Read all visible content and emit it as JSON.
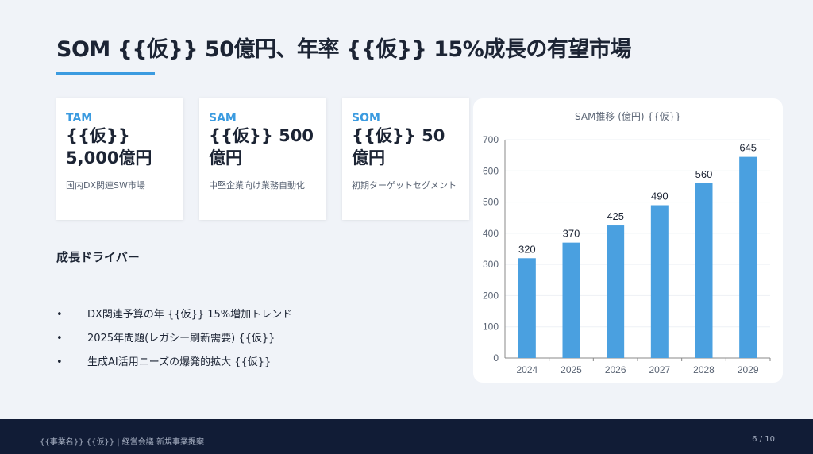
{
  "title": "SOM {{仮}} 50億円、年率 {{仮}} 15%成長の有望市場",
  "cards": [
    {
      "label": "TAM",
      "value": "{{仮}} 5,000億円",
      "desc": "国内DX関連SW市場"
    },
    {
      "label": "SAM",
      "value": "{{仮}} 500億円",
      "desc": "中堅企業向け業務自動化"
    },
    {
      "label": "SOM",
      "value": "{{仮}} 50億円",
      "desc": "初期ターゲットセグメント"
    }
  ],
  "drivers": {
    "heading": "成長ドライバー",
    "items": [
      "DX関連予算の年 {{仮}} 15%増加トレンド",
      "2025年問題(レガシー刷新需要) {{仮}}",
      "生成AI活用ニーズの爆発的拡大 {{仮}}"
    ]
  },
  "chart_data": {
    "type": "bar",
    "title": "SAM推移 (億円) {{仮}}",
    "categories": [
      "2024",
      "2025",
      "2026",
      "2027",
      "2028",
      "2029"
    ],
    "values": [
      320,
      370,
      425,
      490,
      560,
      645
    ],
    "ylim": [
      0,
      700
    ],
    "yticks": [
      0,
      100,
      200,
      300,
      400,
      500,
      600,
      700
    ],
    "grid": true,
    "bar_color": "#4aa0e0"
  },
  "footer": {
    "left": "{{事業名}} {{仮}} | 経営会議 新規事業提案",
    "page": "6 / 10"
  }
}
